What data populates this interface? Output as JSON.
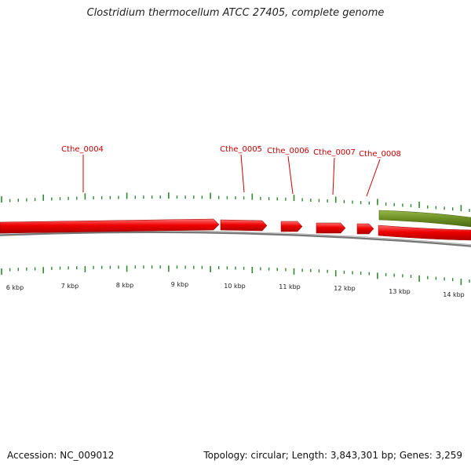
{
  "title": "Clostridium thermocellum ATCC 27405, complete genome",
  "accession_text": "Accession: NC_009012",
  "summary_text": "Topology: circular; Length: 3,843,301 bp; Genes: 3,259",
  "colors": {
    "forward_gene": "#ee0000",
    "reverse_gene": "#6b8e23",
    "backbone": "#888888",
    "tick": "#2e8b2e",
    "gene_label": "#cc0000"
  },
  "ruler": {
    "tick_labels": [
      "6 kbp",
      "7 kbp",
      "8 kbp",
      "9 kbp",
      "10 kbp",
      "11 kbp",
      "12 kbp",
      "13 kbp",
      "14 kbp"
    ]
  },
  "gene_labels": [
    "Cthe_0004",
    "Cthe_0005",
    "Cthe_0006",
    "Cthe_0007",
    "Cthe_0008"
  ]
}
